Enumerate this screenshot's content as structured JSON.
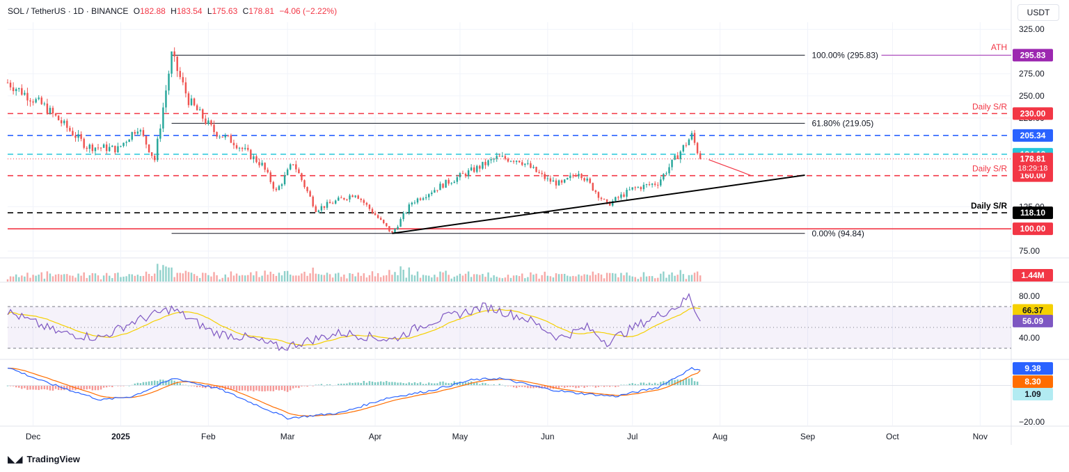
{
  "header": {
    "symbol": "SOL / TetherUS",
    "interval": "1D",
    "exchange": "BINANCE",
    "open_label": "O",
    "open": "182.88",
    "high_label": "H",
    "high": "183.54",
    "low_label": "L",
    "low": "175.63",
    "close_label": "C",
    "close": "178.81",
    "change": "−4.06 (−2.22%)"
  },
  "currency_button": "USDT",
  "brand": "TradingView",
  "colors": {
    "up": "#26a69a",
    "down": "#ef5350",
    "blue": "#2962ff",
    "orange": "#ff6d00",
    "purple": "#7e57c2",
    "yellow": "#f5d000",
    "red_level": "#f23645",
    "ath": "#9c27b0"
  },
  "chart_data": [
    {
      "type": "candlestick",
      "pane": "price",
      "yticks": [
        "325.00",
        "275.00",
        "250.00",
        "225.00",
        "125.00",
        "75.00"
      ],
      "xticks": [
        "Dec",
        "2025",
        "Feb",
        "Mar",
        "Apr",
        "May",
        "Jun",
        "Jul",
        "Aug",
        "Sep",
        "Oct",
        "Nov"
      ],
      "x_range": [
        "2024-11-22",
        "2025-11-12"
      ],
      "ylim": [
        68,
        333
      ],
      "scale": "linear",
      "summary": {
        "ath": 295.83,
        "low": 94.84,
        "last": 178.81
      },
      "key_points": [
        [
          "2024-11-22",
          265
        ],
        [
          "2024-12-05",
          238
        ],
        [
          "2024-12-20",
          193
        ],
        [
          "2024-12-31",
          190
        ],
        [
          "2025-01-07",
          215
        ],
        [
          "2025-01-13",
          178
        ],
        [
          "2025-01-19",
          295.83
        ],
        [
          "2025-01-25",
          245
        ],
        [
          "2025-02-03",
          210
        ],
        [
          "2025-02-10",
          198
        ],
        [
          "2025-02-20",
          172
        ],
        [
          "2025-02-25",
          142
        ],
        [
          "2025-03-03",
          175
        ],
        [
          "2025-03-11",
          122
        ],
        [
          "2025-03-25",
          140
        ],
        [
          "2025-04-07",
          94.84
        ],
        [
          "2025-04-14",
          130
        ],
        [
          "2025-04-25",
          150
        ],
        [
          "2025-05-08",
          170
        ],
        [
          "2025-05-14",
          180
        ],
        [
          "2025-05-22",
          178
        ],
        [
          "2025-06-01",
          155
        ],
        [
          "2025-06-06",
          150
        ],
        [
          "2025-06-12",
          165
        ],
        [
          "2025-06-22",
          127
        ],
        [
          "2025-07-01",
          145
        ],
        [
          "2025-07-10",
          152
        ],
        [
          "2025-07-22",
          205.34
        ],
        [
          "2025-07-25",
          178.81
        ]
      ],
      "projection": [
        [
          "2025-07-28",
          178
        ],
        [
          "2025-08-02",
          172
        ],
        [
          "2025-08-08",
          165
        ],
        [
          "2025-08-12",
          160
        ]
      ],
      "levels": [
        {
          "name": "Daily S/R",
          "price": 230.0,
          "label": "230.00",
          "style": "dashed",
          "color": "#f23645"
        },
        {
          "name": "Daily S/R",
          "price": 160.0,
          "label": "160.00",
          "style": "dashed",
          "color": "#f23645"
        },
        {
          "name": "Daily S/R",
          "price": 118.1,
          "label": "118.10",
          "style": "dashed",
          "color": "#000000"
        },
        {
          "price": 205.34,
          "label": "205.34",
          "style": "dashed",
          "color": "#2962ff"
        },
        {
          "price": 184.13,
          "label": "184.13",
          "style": "dashed",
          "color": "#26c6da"
        },
        {
          "price": 100.0,
          "label": "100.00",
          "style": "solid",
          "color": "#f23645"
        }
      ],
      "fib": [
        {
          "label": "100.00% (295.83)",
          "price": 295.83
        },
        {
          "label": "61.80% (219.05)",
          "price": 219.05
        },
        {
          "label": "0.00% (94.84)",
          "price": 94.84
        }
      ],
      "ath_label": "ATH",
      "ath_value": "295.83",
      "last_price_label": "178.81",
      "countdown": "18:29:18",
      "trendline": {
        "from": [
          "2025-04-07",
          94.84
        ],
        "to": [
          "2025-08-31",
          160.5
        ]
      }
    },
    {
      "type": "bar",
      "pane": "volume",
      "last_label": "1.44M"
    },
    {
      "type": "line",
      "pane": "rsi",
      "yticks": [
        "80.00",
        "40.00"
      ],
      "ylim": [
        20,
        92
      ],
      "bands": [
        70,
        30
      ],
      "series": [
        {
          "label": "66.37",
          "color": "#f5d000"
        },
        {
          "label": "56.09",
          "color": "#7e57c2"
        }
      ],
      "key_points": [
        [
          "2024-11-22",
          65
        ],
        [
          "2024-12-10",
          45
        ],
        [
          "2024-12-25",
          40
        ],
        [
          "2025-01-05",
          55
        ],
        [
          "2025-01-19",
          68
        ],
        [
          "2025-02-03",
          45
        ],
        [
          "2025-02-15",
          40
        ],
        [
          "2025-02-27",
          30
        ],
        [
          "2025-03-05",
          35
        ],
        [
          "2025-03-20",
          45
        ],
        [
          "2025-04-07",
          38
        ],
        [
          "2025-04-20",
          55
        ],
        [
          "2025-05-10",
          70
        ],
        [
          "2025-05-25",
          58
        ],
        [
          "2025-06-05",
          40
        ],
        [
          "2025-06-15",
          50
        ],
        [
          "2025-06-22",
          36
        ],
        [
          "2025-07-05",
          55
        ],
        [
          "2025-07-18",
          72
        ],
        [
          "2025-07-21",
          80
        ],
        [
          "2025-07-25",
          56.09
        ]
      ],
      "ma_last": 66.37
    },
    {
      "type": "line",
      "pane": "macd",
      "yticks": [
        "−20.00"
      ],
      "ylim": [
        -22,
        14
      ],
      "series": [
        {
          "label": "9.38",
          "color": "#2962ff"
        },
        {
          "label": "8.30",
          "color": "#ff6d00"
        },
        {
          "label": "1.09",
          "color": "#26a69a"
        }
      ],
      "key_points": [
        [
          "2024-11-22",
          10
        ],
        [
          "2024-12-05",
          2
        ],
        [
          "2024-12-25",
          -8
        ],
        [
          "2025-01-05",
          -6
        ],
        [
          "2025-01-20",
          4
        ],
        [
          "2025-02-05",
          -2
        ],
        [
          "2025-02-20",
          -12
        ],
        [
          "2025-03-01",
          -18
        ],
        [
          "2025-03-20",
          -15
        ],
        [
          "2025-04-05",
          -7
        ],
        [
          "2025-04-20",
          -3
        ],
        [
          "2025-05-05",
          3
        ],
        [
          "2025-05-15",
          4
        ],
        [
          "2025-06-01",
          -2
        ],
        [
          "2025-06-10",
          -4
        ],
        [
          "2025-06-25",
          -6
        ],
        [
          "2025-07-10",
          -1
        ],
        [
          "2025-07-22",
          9.38
        ],
        [
          "2025-07-25",
          8.9
        ]
      ]
    }
  ]
}
